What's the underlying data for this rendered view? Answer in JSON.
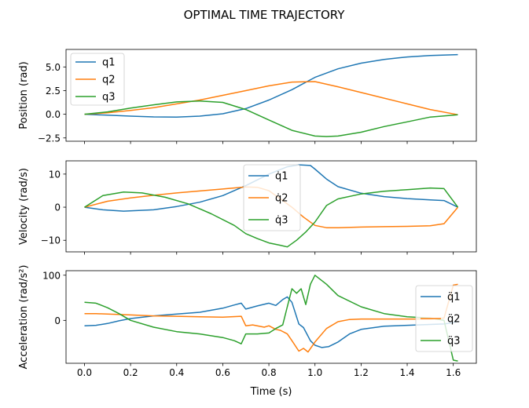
{
  "figure": {
    "title": "OPTIMAL TIME TRAJECTORY",
    "xlabel": "Time (s)"
  },
  "chart_data": [
    {
      "type": "line",
      "ylabel": "Position (rad)",
      "xlim": [
        -0.08,
        1.7
      ],
      "ylim": [
        -2.85,
        6.85
      ],
      "xticks": [
        0.0,
        0.2,
        0.4,
        0.6,
        0.8,
        1.0,
        1.2,
        1.4,
        1.6
      ],
      "yticks": [
        -2.5,
        0.0,
        2.5,
        5.0
      ],
      "ytick_labels": [
        "−2.5",
        "0.0",
        "2.5",
        "5.0"
      ],
      "legend": "upper left",
      "series": [
        {
          "name": "q1",
          "color": "#1f77b4",
          "x": [
            0.0,
            0.1,
            0.2,
            0.3,
            0.4,
            0.5,
            0.6,
            0.7,
            0.8,
            0.9,
            1.0,
            1.1,
            1.2,
            1.3,
            1.4,
            1.5,
            1.62
          ],
          "y": [
            0.0,
            -0.1,
            -0.2,
            -0.28,
            -0.3,
            -0.2,
            0.05,
            0.6,
            1.5,
            2.6,
            3.9,
            4.8,
            5.4,
            5.8,
            6.05,
            6.2,
            6.3
          ]
        },
        {
          "name": "q2",
          "color": "#ff7f0e",
          "x": [
            0.0,
            0.1,
            0.2,
            0.3,
            0.4,
            0.5,
            0.6,
            0.7,
            0.8,
            0.9,
            1.0,
            1.1,
            1.2,
            1.3,
            1.4,
            1.5,
            1.62
          ],
          "y": [
            0.0,
            0.15,
            0.4,
            0.7,
            1.1,
            1.5,
            2.0,
            2.5,
            3.0,
            3.4,
            3.45,
            2.9,
            2.3,
            1.7,
            1.1,
            0.5,
            -0.05
          ]
        },
        {
          "name": "q3",
          "color": "#2ca02c",
          "x": [
            0.0,
            0.1,
            0.2,
            0.3,
            0.4,
            0.5,
            0.6,
            0.7,
            0.8,
            0.9,
            1.0,
            1.05,
            1.1,
            1.2,
            1.3,
            1.4,
            1.5,
            1.62
          ],
          "y": [
            0.0,
            0.25,
            0.65,
            1.0,
            1.3,
            1.4,
            1.25,
            0.5,
            -0.6,
            -1.7,
            -2.3,
            -2.35,
            -2.3,
            -1.9,
            -1.3,
            -0.8,
            -0.3,
            -0.05
          ]
        }
      ]
    },
    {
      "type": "line",
      "ylabel": "Velocity (rad/s)",
      "xlim": [
        -0.08,
        1.7
      ],
      "ylim": [
        -13.5,
        14.0
      ],
      "xticks": [
        0.0,
        0.2,
        0.4,
        0.6,
        0.8,
        1.0,
        1.2,
        1.4,
        1.6
      ],
      "yticks": [
        -10,
        0,
        10
      ],
      "ytick_labels": [
        "−10",
        "0",
        "10"
      ],
      "legend": "upper center",
      "series": [
        {
          "name": "q̇1",
          "color": "#1f77b4",
          "x": [
            0.0,
            0.08,
            0.17,
            0.3,
            0.4,
            0.5,
            0.6,
            0.7,
            0.8,
            0.88,
            0.93,
            0.98,
            1.0,
            1.05,
            1.1,
            1.2,
            1.3,
            1.4,
            1.5,
            1.56,
            1.62
          ],
          "y": [
            0.0,
            -0.8,
            -1.2,
            -0.8,
            0.2,
            1.5,
            3.5,
            6.5,
            10.0,
            12.2,
            12.8,
            12.6,
            11.5,
            8.5,
            6.2,
            4.2,
            3.2,
            2.6,
            2.2,
            2.0,
            0.0
          ]
        },
        {
          "name": "q̇2",
          "color": "#ff7f0e",
          "x": [
            0.0,
            0.1,
            0.2,
            0.3,
            0.4,
            0.5,
            0.6,
            0.7,
            0.75,
            0.8,
            0.85,
            0.9,
            0.95,
            1.0,
            1.05,
            1.1,
            1.2,
            1.3,
            1.4,
            1.5,
            1.56,
            1.62
          ],
          "y": [
            0.0,
            1.8,
            2.8,
            3.6,
            4.3,
            4.9,
            5.5,
            6.1,
            6.0,
            5.0,
            2.5,
            0.0,
            -3.0,
            -5.5,
            -6.2,
            -6.2,
            -6.0,
            -5.9,
            -5.8,
            -5.6,
            -5.0,
            0.0
          ]
        },
        {
          "name": "q̇3",
          "color": "#2ca02c",
          "x": [
            0.0,
            0.08,
            0.17,
            0.25,
            0.35,
            0.45,
            0.55,
            0.65,
            0.7,
            0.75,
            0.8,
            0.85,
            0.88,
            0.92,
            0.96,
            1.0,
            1.05,
            1.1,
            1.2,
            1.3,
            1.4,
            1.5,
            1.56,
            1.62
          ],
          "y": [
            0.0,
            3.5,
            4.6,
            4.3,
            3.0,
            1.0,
            -2.0,
            -5.5,
            -8.0,
            -9.5,
            -10.8,
            -11.5,
            -12.0,
            -10.0,
            -7.5,
            -4.5,
            0.5,
            2.5,
            4.0,
            4.8,
            5.3,
            5.8,
            5.6,
            0.0
          ]
        }
      ]
    },
    {
      "type": "line",
      "ylabel": "Acceleration (rad/s²)",
      "xlim": [
        -0.08,
        1.7
      ],
      "ylim": [
        -95,
        110
      ],
      "xticks": [
        0.0,
        0.2,
        0.4,
        0.6,
        0.8,
        1.0,
        1.2,
        1.4,
        1.6
      ],
      "xtick_labels": [
        "0.0",
        "0.2",
        "0.4",
        "0.6",
        "0.8",
        "1.0",
        "1.2",
        "1.4",
        "1.6"
      ],
      "yticks": [
        0,
        100
      ],
      "ytick_labels": [
        "0",
        "100"
      ],
      "legend": "right",
      "series": [
        {
          "name": "q̈1",
          "color": "#1f77b4",
          "x": [
            0.0,
            0.05,
            0.1,
            0.15,
            0.2,
            0.3,
            0.4,
            0.5,
            0.6,
            0.65,
            0.68,
            0.7,
            0.75,
            0.8,
            0.83,
            0.86,
            0.88,
            0.9,
            0.93,
            0.95,
            0.98,
            1.0,
            1.03,
            1.06,
            1.1,
            1.15,
            1.2,
            1.3,
            1.4,
            1.5,
            1.56,
            1.6,
            1.62
          ],
          "y": [
            -12,
            -11,
            -7,
            -1,
            4,
            10,
            14,
            18,
            27,
            34,
            38,
            25,
            32,
            38,
            33,
            46,
            52,
            40,
            -8,
            -16,
            -45,
            -55,
            -60,
            -58,
            -48,
            -30,
            -20,
            -13,
            -11,
            -9,
            -8,
            -5,
            -2
          ]
        },
        {
          "name": "q̈2",
          "color": "#ff7f0e",
          "x": [
            0.0,
            0.05,
            0.1,
            0.2,
            0.3,
            0.4,
            0.5,
            0.6,
            0.68,
            0.7,
            0.73,
            0.78,
            0.8,
            0.83,
            0.85,
            0.88,
            0.9,
            0.93,
            0.95,
            0.97,
            1.0,
            1.05,
            1.1,
            1.15,
            1.2,
            1.3,
            1.4,
            1.5,
            1.56,
            1.6,
            1.62
          ],
          "y": [
            15,
            15,
            14,
            12,
            10,
            9,
            8,
            7,
            9,
            -12,
            -10,
            -15,
            -12,
            -20,
            -22,
            -30,
            -45,
            -68,
            -62,
            -70,
            -48,
            -18,
            -3,
            2,
            3,
            3,
            3,
            3,
            5,
            78,
            80
          ]
        },
        {
          "name": "q̈3",
          "color": "#2ca02c",
          "x": [
            0.0,
            0.05,
            0.1,
            0.15,
            0.2,
            0.3,
            0.4,
            0.5,
            0.6,
            0.65,
            0.68,
            0.7,
            0.75,
            0.8,
            0.83,
            0.86,
            0.88,
            0.9,
            0.92,
            0.94,
            0.96,
            0.98,
            1.0,
            1.05,
            1.1,
            1.2,
            1.3,
            1.4,
            1.5,
            1.56,
            1.6,
            1.62
          ],
          "y": [
            40,
            38,
            28,
            15,
            0,
            -15,
            -25,
            -30,
            -38,
            -45,
            -52,
            -30,
            -30,
            -28,
            -18,
            -10,
            30,
            70,
            60,
            70,
            35,
            80,
            100,
            80,
            55,
            30,
            15,
            8,
            5,
            0,
            -88,
            -90
          ]
        }
      ]
    }
  ]
}
